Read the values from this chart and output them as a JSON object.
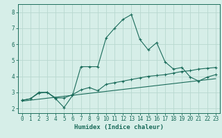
{
  "title": "",
  "xlabel": "Humidex (Indice chaleur)",
  "ylabel": "",
  "background_color": "#d6eee8",
  "grid_color": "#b8d8d0",
  "line_color": "#1a6b5a",
  "xlim": [
    -0.5,
    23.5
  ],
  "ylim": [
    1.7,
    8.5
  ],
  "xticks": [
    0,
    1,
    2,
    3,
    4,
    5,
    6,
    7,
    8,
    9,
    10,
    11,
    12,
    13,
    14,
    15,
    16,
    17,
    18,
    19,
    20,
    21,
    22,
    23
  ],
  "yticks": [
    2,
    3,
    4,
    5,
    6,
    7,
    8
  ],
  "curve1_x": [
    0,
    1,
    2,
    3,
    4,
    5,
    6,
    7,
    8,
    9,
    10,
    11,
    12,
    13,
    14,
    15,
    16,
    17,
    18,
    19,
    20,
    21,
    22,
    23
  ],
  "curve1_y": [
    2.5,
    2.6,
    3.0,
    3.0,
    2.6,
    2.05,
    2.8,
    4.6,
    4.6,
    4.6,
    6.4,
    7.0,
    7.55,
    7.85,
    6.3,
    5.65,
    6.1,
    4.9,
    4.45,
    4.55,
    3.95,
    3.7,
    3.95,
    4.1
  ],
  "curve2_x": [
    0,
    1,
    2,
    3,
    4,
    5,
    6,
    7,
    8,
    9,
    10,
    11,
    12,
    13,
    14,
    15,
    16,
    17,
    18,
    19,
    20,
    21,
    22,
    23
  ],
  "curve2_y": [
    2.5,
    2.6,
    2.95,
    3.0,
    2.65,
    2.65,
    2.85,
    3.15,
    3.3,
    3.1,
    3.5,
    3.6,
    3.7,
    3.8,
    3.9,
    4.0,
    4.05,
    4.1,
    4.2,
    4.3,
    4.35,
    4.45,
    4.5,
    4.55
  ],
  "trend_x": [
    0,
    23
  ],
  "trend_y": [
    2.45,
    3.85
  ],
  "font_family": "monospace",
  "xlabel_fontsize": 6.5,
  "tick_fontsize": 5.5
}
